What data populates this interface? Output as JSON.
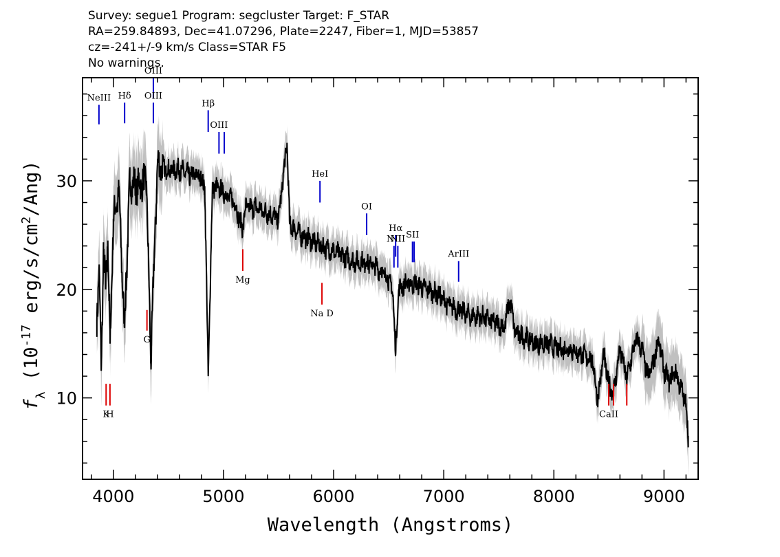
{
  "header": {
    "line1": "Survey: segue1 Program: segcluster Target: F_STAR",
    "line2": "RA=259.84893, Dec=41.07296, Plate=2247, Fiber=1, MJD=53857",
    "line3": "cz=-241+/-9 km/s Class=STAR F5",
    "line4": "No warnings."
  },
  "chart_data": {
    "type": "line",
    "title": "",
    "xlabel": "Wavelength (Angstroms)",
    "ylabel": "f_λ (10^-17 erg/s/cm^2/Ang)",
    "xlim": [
      3720,
      9310
    ],
    "ylim": [
      2.5,
      39.5
    ],
    "xticks": [
      4000,
      5000,
      6000,
      7000,
      8000,
      9000
    ],
    "yticks": [
      10,
      20,
      30
    ],
    "grid": false,
    "colors": {
      "flux": "#000000",
      "error_band": "#c0c0c0",
      "emission": "#0000cc",
      "absorption": "#dd0000"
    },
    "series": [
      {
        "role": "smoothed-flux",
        "x": [
          3850,
          3870,
          3890,
          3910,
          3930,
          3950,
          3970,
          4000,
          4050,
          4100,
          4150,
          4200,
          4300,
          4340,
          4400,
          4500,
          4600,
          4700,
          4780,
          4830,
          4861,
          4900,
          5000,
          5100,
          5172,
          5200,
          5300,
          5400,
          5500,
          5577,
          5600,
          5700,
          5800,
          5893,
          6000,
          6100,
          6200,
          6300,
          6400,
          6500,
          6540,
          6563,
          6590,
          6650,
          6750,
          6850,
          6950,
          7050,
          7150,
          7250,
          7350,
          7450,
          7550,
          7600,
          7650,
          7750,
          7850,
          7950,
          8050,
          8150,
          8250,
          8350,
          8400,
          8450,
          8498,
          8542,
          8600,
          8662,
          8700,
          8750,
          8800,
          8850,
          8900,
          8950,
          9000,
          9050,
          9100,
          9150,
          9200,
          9220
        ],
        "y": [
          17.2,
          22.0,
          12.5,
          23.5,
          20.0,
          24.5,
          15.0,
          26.5,
          29.0,
          16.5,
          30.0,
          29.5,
          30.0,
          13.5,
          31.5,
          31.0,
          31.0,
          30.5,
          30.5,
          29.5,
          12.0,
          29.5,
          29.0,
          28.0,
          25.5,
          27.5,
          27.5,
          27.0,
          26.5,
          33.5,
          26.0,
          25.0,
          24.5,
          24.0,
          23.5,
          23.0,
          22.5,
          22.5,
          22.0,
          21.0,
          19.5,
          14.0,
          20.0,
          20.5,
          20.5,
          20.0,
          19.5,
          18.5,
          18.0,
          17.5,
          17.5,
          17.0,
          16.5,
          19.0,
          16.0,
          15.5,
          15.0,
          15.0,
          14.5,
          14.5,
          14.0,
          13.5,
          9.8,
          14.0,
          11.2,
          10.5,
          14.5,
          11.8,
          13.5,
          15.5,
          14.5,
          12.0,
          13.0,
          15.5,
          12.5,
          11.5,
          12.5,
          11.0,
          9.5,
          6.5
        ]
      }
    ],
    "line_markers": [
      {
        "label": "NeIII",
        "kind": "emission",
        "x": 3869,
        "y_lo": 35.2,
        "y_hi": 37.0
      },
      {
        "label": "Hδ",
        "kind": "emission",
        "x": 4102,
        "y_lo": 35.3,
        "y_hi": 37.2
      },
      {
        "label": "OIII",
        "kind": "emission",
        "x": 4363,
        "y_lo": 37.6,
        "y_hi": 39.5
      },
      {
        "label": "OIII",
        "kind": "emission",
        "x": 4363,
        "y_lo": 35.3,
        "y_hi": 37.2
      },
      {
        "label": "Hβ",
        "kind": "emission",
        "x": 4861,
        "y_lo": 34.5,
        "y_hi": 36.5
      },
      {
        "label": "OIII",
        "kind": "emission",
        "x": 4959,
        "y_lo": 32.5,
        "y_hi": 34.5
      },
      {
        "label": "",
        "kind": "emission",
        "x": 5007,
        "y_lo": 32.5,
        "y_hi": 34.5
      },
      {
        "label": "HeI",
        "kind": "emission",
        "x": 5876,
        "y_lo": 28.0,
        "y_hi": 30.0
      },
      {
        "label": "OI",
        "kind": "emission",
        "x": 6300,
        "y_lo": 25.0,
        "y_hi": 27.0
      },
      {
        "label": "NII",
        "kind": "emission",
        "x": 6548,
        "y_lo": 22.0,
        "y_hi": 24.0
      },
      {
        "label": "Hα",
        "kind": "emission",
        "x": 6563,
        "y_lo": 23.0,
        "y_hi": 25.0
      },
      {
        "label": "NII",
        "kind": "emission",
        "x": 6583,
        "y_lo": 22.0,
        "y_hi": 24.0
      },
      {
        "label": "SII",
        "kind": "emission",
        "x": 6716,
        "y_lo": 22.5,
        "y_hi": 24.4
      },
      {
        "label": "",
        "kind": "emission",
        "x": 6731,
        "y_lo": 22.5,
        "y_hi": 24.4
      },
      {
        "label": "ArIII",
        "kind": "emission",
        "x": 7135,
        "y_lo": 20.7,
        "y_hi": 22.6
      },
      {
        "label": "K",
        "kind": "absorption",
        "x": 3934,
        "y_lo": 9.3,
        "y_hi": 11.3
      },
      {
        "label": "H",
        "kind": "absorption",
        "x": 3969,
        "y_lo": 9.3,
        "y_hi": 11.3
      },
      {
        "label": "G",
        "kind": "absorption",
        "x": 4305,
        "y_lo": 16.2,
        "y_hi": 18.1
      },
      {
        "label": "Mg",
        "kind": "absorption",
        "x": 5175,
        "y_lo": 21.7,
        "y_hi": 23.7
      },
      {
        "label": "Na D",
        "kind": "absorption",
        "x": 5894,
        "y_lo": 18.6,
        "y_hi": 20.6
      },
      {
        "label": "CaII",
        "kind": "absorption",
        "x": 8498,
        "y_lo": 9.3,
        "y_hi": 11.3
      },
      {
        "label": "",
        "kind": "absorption",
        "x": 8542,
        "y_lo": 9.3,
        "y_hi": 11.3
      },
      {
        "label": "",
        "kind": "absorption",
        "x": 8662,
        "y_lo": 9.3,
        "y_hi": 11.3
      }
    ]
  }
}
